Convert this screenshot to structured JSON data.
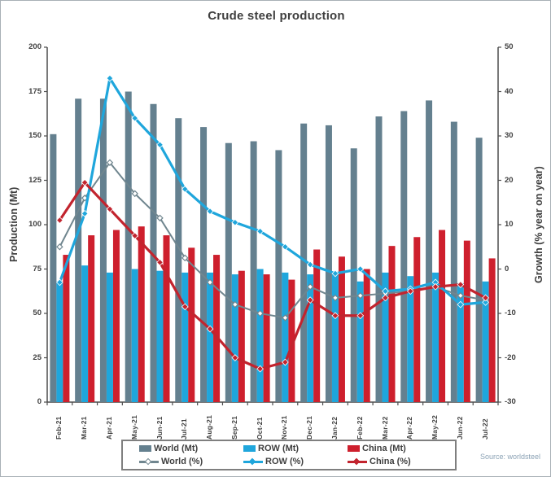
{
  "title": "Crude steel production",
  "source": "Source: worldsteel",
  "colors": {
    "bar_world": "#64808F",
    "bar_row": "#1FA6DC",
    "bar_china": "#CE1F2D",
    "line_world": "#70868F",
    "line_row": "#1FA6DC",
    "line_china": "#C2242E",
    "spine": "#4d4d4d",
    "text": "#3f3f3f",
    "source_text": "#8ba2b5"
  },
  "legend": {
    "items": [
      {
        "label": "World (Mt)",
        "type": "bar",
        "color": "#64808F"
      },
      {
        "label": "ROW (Mt)",
        "type": "bar",
        "color": "#1FA6DC"
      },
      {
        "label": "China (Mt)",
        "type": "bar",
        "color": "#CE1F2D"
      },
      {
        "label": "World (%)",
        "type": "line",
        "color": "#70868F"
      },
      {
        "label": "ROW (%)",
        "type": "line",
        "color": "#1FA6DC"
      },
      {
        "label": "China (%)",
        "type": "line",
        "color": "#C2242E"
      }
    ]
  },
  "chart_data": {
    "type": "combo",
    "title": "Crude steel production",
    "categories": [
      "Feb-21",
      "Mar-21",
      "Apr-21",
      "May-21",
      "Jun-21",
      "Jul-21",
      "Aug-21",
      "Sep-21",
      "Oct-21",
      "Nov-21",
      "Dec-21",
      "Jan-22",
      "Feb-22",
      "Mar-22",
      "Apr-22",
      "May-22",
      "Jun-22",
      "Jul-22"
    ],
    "left_axis": {
      "title": "Production (Mt)",
      "min": 0,
      "max": 200,
      "tick_step": 25,
      "ticks": [
        0,
        25,
        50,
        75,
        100,
        125,
        150,
        175,
        200
      ]
    },
    "right_axis": {
      "title": "Growth (% year on year)",
      "min": -30,
      "max": 50,
      "tick_step": 10,
      "ticks": [
        -30,
        -20,
        -10,
        0,
        10,
        20,
        30,
        40,
        50
      ]
    },
    "grid": false,
    "legend_position": "bottom",
    "series": [
      {
        "name": "World (Mt)",
        "type": "bar",
        "axis": "left",
        "color": "#64808F",
        "values": [
          151,
          171,
          171,
          175,
          168,
          160,
          155,
          146,
          147,
          142,
          157,
          156,
          143,
          161,
          164,
          170,
          158,
          149
        ]
      },
      {
        "name": "ROW (Mt)",
        "type": "bar",
        "axis": "left",
        "color": "#1FA6DC",
        "values": [
          68,
          77,
          73,
          75,
          74,
          73,
          73,
          72,
          75,
          73,
          72,
          73,
          68,
          73,
          71,
          73,
          67,
          68
        ]
      },
      {
        "name": "China (Mt)",
        "type": "bar",
        "axis": "left",
        "color": "#CE1F2D",
        "values": [
          83,
          94,
          97,
          99,
          94,
          87,
          83,
          74,
          72,
          69,
          86,
          82,
          75,
          88,
          93,
          97,
          91,
          81
        ]
      },
      {
        "name": "World (%)",
        "type": "line",
        "axis": "right",
        "color": "#70868F",
        "marker": "open-diamond",
        "values": [
          5,
          16,
          24,
          17,
          11.5,
          2.5,
          -3,
          -8,
          -10,
          -11,
          -4,
          -6.5,
          -6,
          -5.5,
          -5,
          -4,
          -6,
          -7
        ]
      },
      {
        "name": "ROW (%)",
        "type": "line",
        "axis": "right",
        "color": "#1FA6DC",
        "marker": "diamond",
        "values": [
          -3,
          12.5,
          43,
          34,
          28,
          18,
          13,
          10.5,
          8.5,
          5,
          1,
          -1,
          0,
          -5,
          -4.5,
          -3,
          -8,
          -7.5
        ]
      },
      {
        "name": "China (%)",
        "type": "line",
        "axis": "right",
        "color": "#C2242E",
        "marker": "diamond",
        "values": [
          11,
          19.5,
          13.5,
          7.5,
          1.5,
          -8.5,
          -13.5,
          -20,
          -22.5,
          -21,
          -7,
          -10.5,
          -10.5,
          -6.5,
          -5,
          -4,
          -3.5,
          -6.5
        ]
      }
    ]
  }
}
